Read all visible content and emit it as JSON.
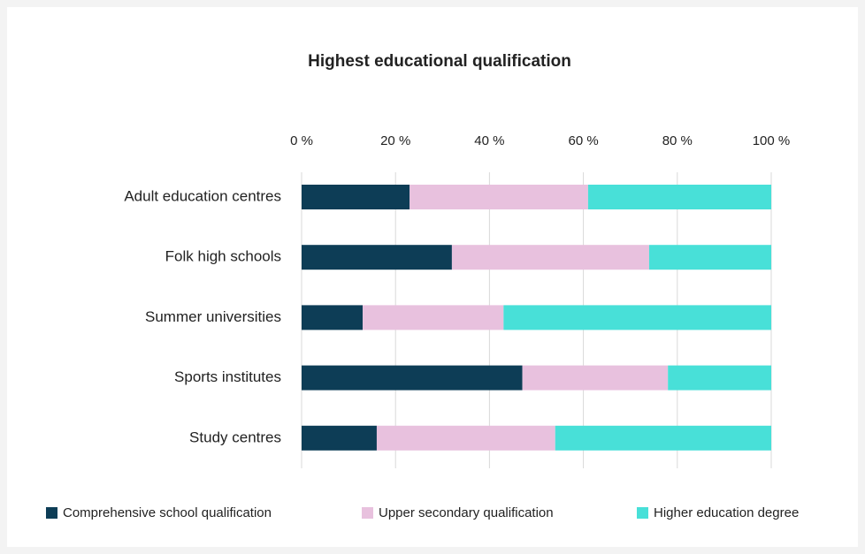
{
  "chart_data": {
    "type": "stacked_barh",
    "title": "Highest educational qualification",
    "categories": [
      "Adult education centres",
      "Folk high schools",
      "Summer universities",
      "Sports institutes",
      "Study centres"
    ],
    "series": [
      {
        "name": "Comprehensive school qualification",
        "color": "#0d3d56",
        "values": [
          23,
          32,
          13,
          47,
          16
        ]
      },
      {
        "name": "Upper secondary qualification",
        "color": "#e8c1de",
        "values": [
          38,
          42,
          30,
          31,
          38
        ]
      },
      {
        "name": "Higher education degree",
        "color": "#48e0d8",
        "values": [
          39,
          26,
          57,
          22,
          46
        ]
      }
    ],
    "xlim": [
      0,
      100
    ],
    "xticks": [
      {
        "value": 0,
        "label": "0 %"
      },
      {
        "value": 20,
        "label": "20 %"
      },
      {
        "value": 40,
        "label": "40 %"
      },
      {
        "value": 60,
        "label": "60 %"
      },
      {
        "value": 80,
        "label": "80 %"
      },
      {
        "value": 100,
        "label": "100 %"
      }
    ],
    "grid": true,
    "legend": "bottom"
  }
}
